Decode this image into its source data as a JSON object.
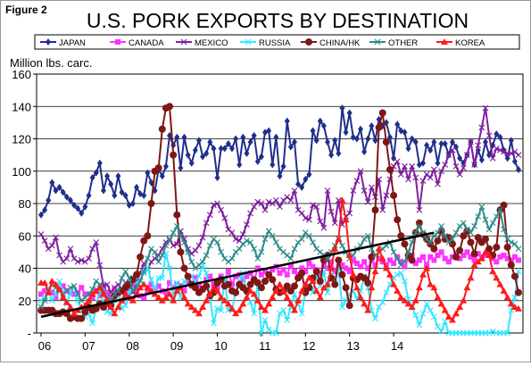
{
  "figure_label": "Figure 2",
  "chart_data": {
    "type": "line",
    "title": "U.S. PORK EXPORTS BY DESTINATION",
    "ylabel": "Million lbs. carc.",
    "xlabel": "",
    "ylim": [
      0,
      160
    ],
    "yticks": [
      "-",
      "20",
      "40",
      "60",
      "80",
      "100",
      "120",
      "140",
      "160"
    ],
    "xticks": [
      "06",
      "07",
      "08",
      "09",
      "10",
      "11",
      "12",
      "13",
      "14"
    ],
    "x_start": "2006-01",
    "grid": true,
    "legend_position": "top",
    "trend_line": {
      "start": [
        "2006-01",
        10
      ],
      "end": [
        "2014-12",
        62
      ],
      "color": "#000000"
    },
    "series": [
      {
        "name": "JAPAN",
        "color": "#1F2F8C",
        "marker": "diamond",
        "values": [
          73,
          76,
          82,
          93,
          88,
          90,
          87,
          84,
          82,
          79,
          77,
          74,
          78,
          85,
          96,
          99,
          105,
          88,
          97,
          92,
          85,
          97,
          87,
          85,
          79,
          80,
          90,
          86,
          85,
          99,
          93,
          88,
          101,
          97,
          103,
          122,
          116,
          121,
          102,
          121,
          110,
          105,
          113,
          119,
          109,
          111,
          118,
          114,
          96,
          114,
          114,
          117,
          114,
          120,
          104,
          121,
          111,
          118,
          122,
          106,
          109,
          124,
          125,
          104,
          121,
          97,
          103,
          131,
          115,
          118,
          92,
          90,
          95,
          98,
          125,
          119,
          131,
          128,
          118,
          110,
          119,
          111,
          139,
          124,
          136,
          121,
          120,
          126,
          112,
          120,
          128,
          119,
          132,
          128,
          130,
          121,
          108,
          129,
          125,
          124,
          114,
          120,
          118,
          104,
          105,
          116,
          113,
          118,
          105,
          117,
          117,
          110,
          118,
          115,
          108,
          105,
          110,
          118,
          104,
          113,
          107,
          118,
          110,
          116,
          123,
          121,
          113,
          108,
          119,
          106,
          101
        ]
      },
      {
        "name": "CANADA",
        "color": "#FF33FF",
        "marker": "square",
        "values": [
          24,
          26,
          26,
          25,
          22,
          27,
          29,
          26,
          25,
          24,
          25,
          28,
          24,
          24,
          22,
          26,
          23,
          29,
          25,
          22,
          27,
          24,
          26,
          23,
          28,
          30,
          26,
          23,
          22,
          26,
          30,
          27,
          29,
          26,
          25,
          31,
          28,
          30,
          29,
          26,
          32,
          29,
          34,
          30,
          27,
          33,
          35,
          30,
          28,
          35,
          33,
          38,
          30,
          35,
          36,
          33,
          35,
          37,
          32,
          40,
          36,
          38,
          35,
          39,
          41,
          37,
          39,
          36,
          42,
          38,
          36,
          40,
          38,
          43,
          41,
          39,
          37,
          42,
          40,
          44,
          38,
          41,
          42,
          40,
          38,
          45,
          43,
          41,
          44,
          40,
          45,
          42,
          46,
          44,
          42,
          45,
          43,
          47,
          44,
          41,
          46,
          48,
          43,
          45,
          47,
          42,
          47,
          45,
          48,
          50,
          46,
          44,
          47,
          49,
          46,
          48,
          50,
          47,
          45,
          49,
          47,
          48,
          50,
          46,
          44,
          47,
          48,
          46,
          45,
          47,
          45
        ]
      },
      {
        "name": "MEXICO",
        "color": "#7F1F9F",
        "marker": "x",
        "values": [
          61,
          57,
          52,
          54,
          59,
          48,
          44,
          46,
          52,
          46,
          44,
          45,
          44,
          46,
          52,
          56,
          42,
          29,
          30,
          25,
          28,
          30,
          27,
          31,
          29,
          25,
          31,
          37,
          43,
          39,
          44,
          46,
          48,
          52,
          56,
          58,
          54,
          55,
          63,
          58,
          52,
          49,
          51,
          54,
          59,
          68,
          73,
          79,
          80,
          76,
          71,
          64,
          62,
          58,
          57,
          61,
          67,
          74,
          78,
          81,
          80,
          76,
          81,
          80,
          82,
          78,
          82,
          84,
          82,
          88,
          76,
          74,
          71,
          70,
          79,
          78,
          69,
          65,
          88,
          75,
          68,
          82,
          67,
          72,
          74,
          88,
          94,
          100,
          88,
          81,
          90,
          84,
          95,
          76,
          85,
          95,
          103,
          106,
          98,
          103,
          95,
          103,
          96,
          76,
          94,
          98,
          96,
          101,
          92,
          100,
          104,
          110,
          113,
          103,
          98,
          102,
          110,
          118,
          104,
          116,
          127,
          139,
          122,
          108,
          114,
          113,
          112,
          111,
          111,
          112,
          110
        ]
      },
      {
        "name": "RUSSIA",
        "color": "#33E6FF",
        "marker": "x",
        "values": [
          20,
          22,
          28,
          20,
          24,
          32,
          25,
          18,
          25,
          29,
          20,
          14,
          10,
          12,
          6,
          15,
          28,
          19,
          13,
          12,
          20,
          25,
          15,
          17,
          25,
          34,
          31,
          33,
          37,
          40,
          33,
          27,
          34,
          34,
          49,
          40,
          22,
          31,
          22,
          32,
          33,
          35,
          32,
          35,
          42,
          37,
          22,
          6,
          15,
          14,
          34,
          14,
          14,
          26,
          32,
          37,
          23,
          19,
          12,
          32,
          0,
          8,
          2,
          0,
          0,
          12,
          14,
          8,
          16,
          24,
          18,
          12,
          26,
          30,
          25,
          37,
          29,
          38,
          25,
          36,
          31,
          40,
          16,
          20,
          24,
          26,
          21,
          26,
          35,
          28,
          14,
          9,
          16,
          19,
          25,
          30,
          34,
          36,
          37,
          32,
          21,
          16,
          11,
          5,
          12,
          18,
          14,
          10,
          4,
          1,
          7,
          0,
          0,
          0,
          0,
          0,
          0,
          0,
          0,
          0,
          0,
          0,
          0,
          1,
          0,
          0,
          0,
          0,
          14,
          22,
          38
        ]
      },
      {
        "name": "CHINA/HK",
        "color": "#7F1717",
        "marker": "circle",
        "values": [
          14,
          14,
          14,
          14,
          12,
          12,
          13,
          12,
          9,
          10,
          9,
          9,
          13,
          16,
          14,
          15,
          18,
          16,
          19,
          17,
          23,
          25,
          26,
          28,
          30,
          33,
          36,
          47,
          57,
          60,
          80,
          100,
          102,
          126,
          139,
          140,
          110,
          73,
          50,
          40,
          35,
          30,
          28,
          25,
          27,
          29,
          23,
          25,
          31,
          33,
          29,
          30,
          26,
          25,
          30,
          28,
          26,
          30,
          33,
          31,
          28,
          32,
          36,
          33,
          27,
          25,
          26,
          29,
          26,
          29,
          34,
          37,
          25,
          28,
          34,
          38,
          32,
          45,
          48,
          34,
          30,
          45,
          36,
          28,
          17,
          34,
          33,
          35,
          34,
          31,
          47,
          76,
          127,
          136,
          118,
          101,
          85,
          70,
          60,
          55,
          48,
          45,
          62,
          68,
          61,
          58,
          55,
          52,
          57,
          63,
          58,
          59,
          55,
          47,
          51,
          60,
          63,
          56,
          49,
          59,
          56,
          58,
          52,
          48,
          53,
          76,
          79,
          53,
          42,
          35,
          25
        ]
      },
      {
        "name": "OTHER",
        "color": "#2E8B8B",
        "marker": "x",
        "values": [
          16,
          20,
          26,
          30,
          28,
          26,
          24,
          26,
          28,
          29,
          24,
          20,
          22,
          24,
          27,
          32,
          30,
          26,
          22,
          20,
          24,
          26,
          34,
          38,
          34,
          26,
          28,
          32,
          38,
          46,
          52,
          50,
          44,
          48,
          54,
          57,
          62,
          66,
          60,
          56,
          50,
          44,
          40,
          42,
          44,
          48,
          54,
          58,
          56,
          50,
          46,
          44,
          46,
          50,
          52,
          55,
          57,
          56,
          52,
          46,
          50,
          58,
          63,
          60,
          56,
          52,
          50,
          48,
          46,
          52,
          56,
          58,
          62,
          60,
          56,
          52,
          50,
          48,
          46,
          50,
          54,
          58,
          54,
          50,
          46,
          48,
          52,
          54,
          58,
          60,
          52,
          48,
          50,
          52,
          54,
          56,
          50,
          46,
          42,
          44,
          50,
          56,
          62,
          66,
          62,
          58,
          56,
          60,
          62,
          66,
          60,
          56,
          58,
          62,
          66,
          68,
          64,
          62,
          66,
          72,
          78,
          70,
          64,
          68,
          72,
          76,
          64,
          58,
          56,
          55,
          52
        ]
      },
      {
        "name": "KOREA",
        "color": "#FF1A1A",
        "marker": "triangle",
        "values": [
          31,
          31,
          25,
          32,
          30,
          27,
          22,
          19,
          16,
          12,
          14,
          16,
          17,
          20,
          24,
          26,
          28,
          24,
          20,
          16,
          12,
          16,
          20,
          24,
          22,
          20,
          24,
          28,
          30,
          28,
          26,
          24,
          22,
          20,
          22,
          24,
          20,
          26,
          28,
          22,
          18,
          16,
          14,
          12,
          16,
          20,
          24,
          28,
          26,
          22,
          20,
          18,
          15,
          12,
          14,
          18,
          22,
          26,
          24,
          20,
          16,
          14,
          18,
          22,
          26,
          30,
          26,
          22,
          18,
          14,
          20,
          26,
          30,
          34,
          32,
          26,
          22,
          28,
          30,
          40,
          52,
          58,
          82,
          70,
          48,
          36,
          28,
          22,
          18,
          14,
          28,
          38,
          52,
          46,
          40,
          36,
          30,
          26,
          22,
          20,
          18,
          16,
          20,
          28,
          36,
          40,
          30,
          28,
          22,
          18,
          14,
          10,
          8,
          12,
          16,
          20,
          28,
          34,
          42,
          44,
          46,
          50,
          48,
          38,
          34,
          30,
          26,
          22,
          18,
          16,
          15
        ]
      }
    ]
  }
}
